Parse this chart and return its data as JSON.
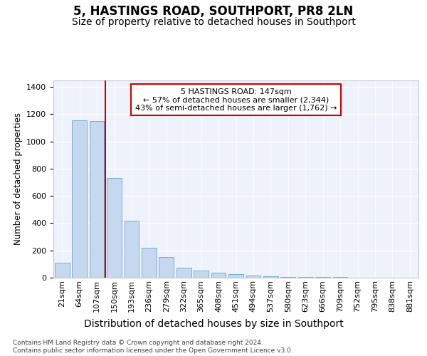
{
  "title": "5, HASTINGS ROAD, SOUTHPORT, PR8 2LN",
  "subtitle": "Size of property relative to detached houses in Southport",
  "xlabel": "Distribution of detached houses by size in Southport",
  "ylabel": "Number of detached properties",
  "bar_labels": [
    "21sqm",
    "64sqm",
    "107sqm",
    "150sqm",
    "193sqm",
    "236sqm",
    "279sqm",
    "322sqm",
    "365sqm",
    "408sqm",
    "451sqm",
    "494sqm",
    "537sqm",
    "580sqm",
    "623sqm",
    "666sqm",
    "709sqm",
    "752sqm",
    "795sqm",
    "838sqm",
    "881sqm"
  ],
  "bar_values": [
    110,
    1155,
    1150,
    730,
    420,
    220,
    150,
    75,
    50,
    38,
    25,
    15,
    10,
    6,
    5,
    4,
    3,
    2,
    2,
    2,
    2
  ],
  "bar_color": "#c5d8f0",
  "bar_edgecolor": "#7aadd4",
  "background_color": "#eef2fb",
  "grid_color": "#ffffff",
  "red_line_x": 2.5,
  "annotation_text": "5 HASTINGS ROAD: 147sqm\n← 57% of detached houses are smaller (2,344)\n43% of semi-detached houses are larger (1,762) →",
  "annotation_box_color": "#ffffff",
  "annotation_border_color": "#cc0000",
  "vline_color": "#cc0000",
  "ylim": [
    0,
    1450
  ],
  "footer": "Contains HM Land Registry data © Crown copyright and database right 2024.\nContains public sector information licensed under the Open Government Licence v3.0.",
  "title_fontsize": 12,
  "subtitle_fontsize": 10,
  "ylabel_fontsize": 8.5,
  "xlabel_fontsize": 10,
  "tick_fontsize": 8,
  "footer_fontsize": 6.5
}
